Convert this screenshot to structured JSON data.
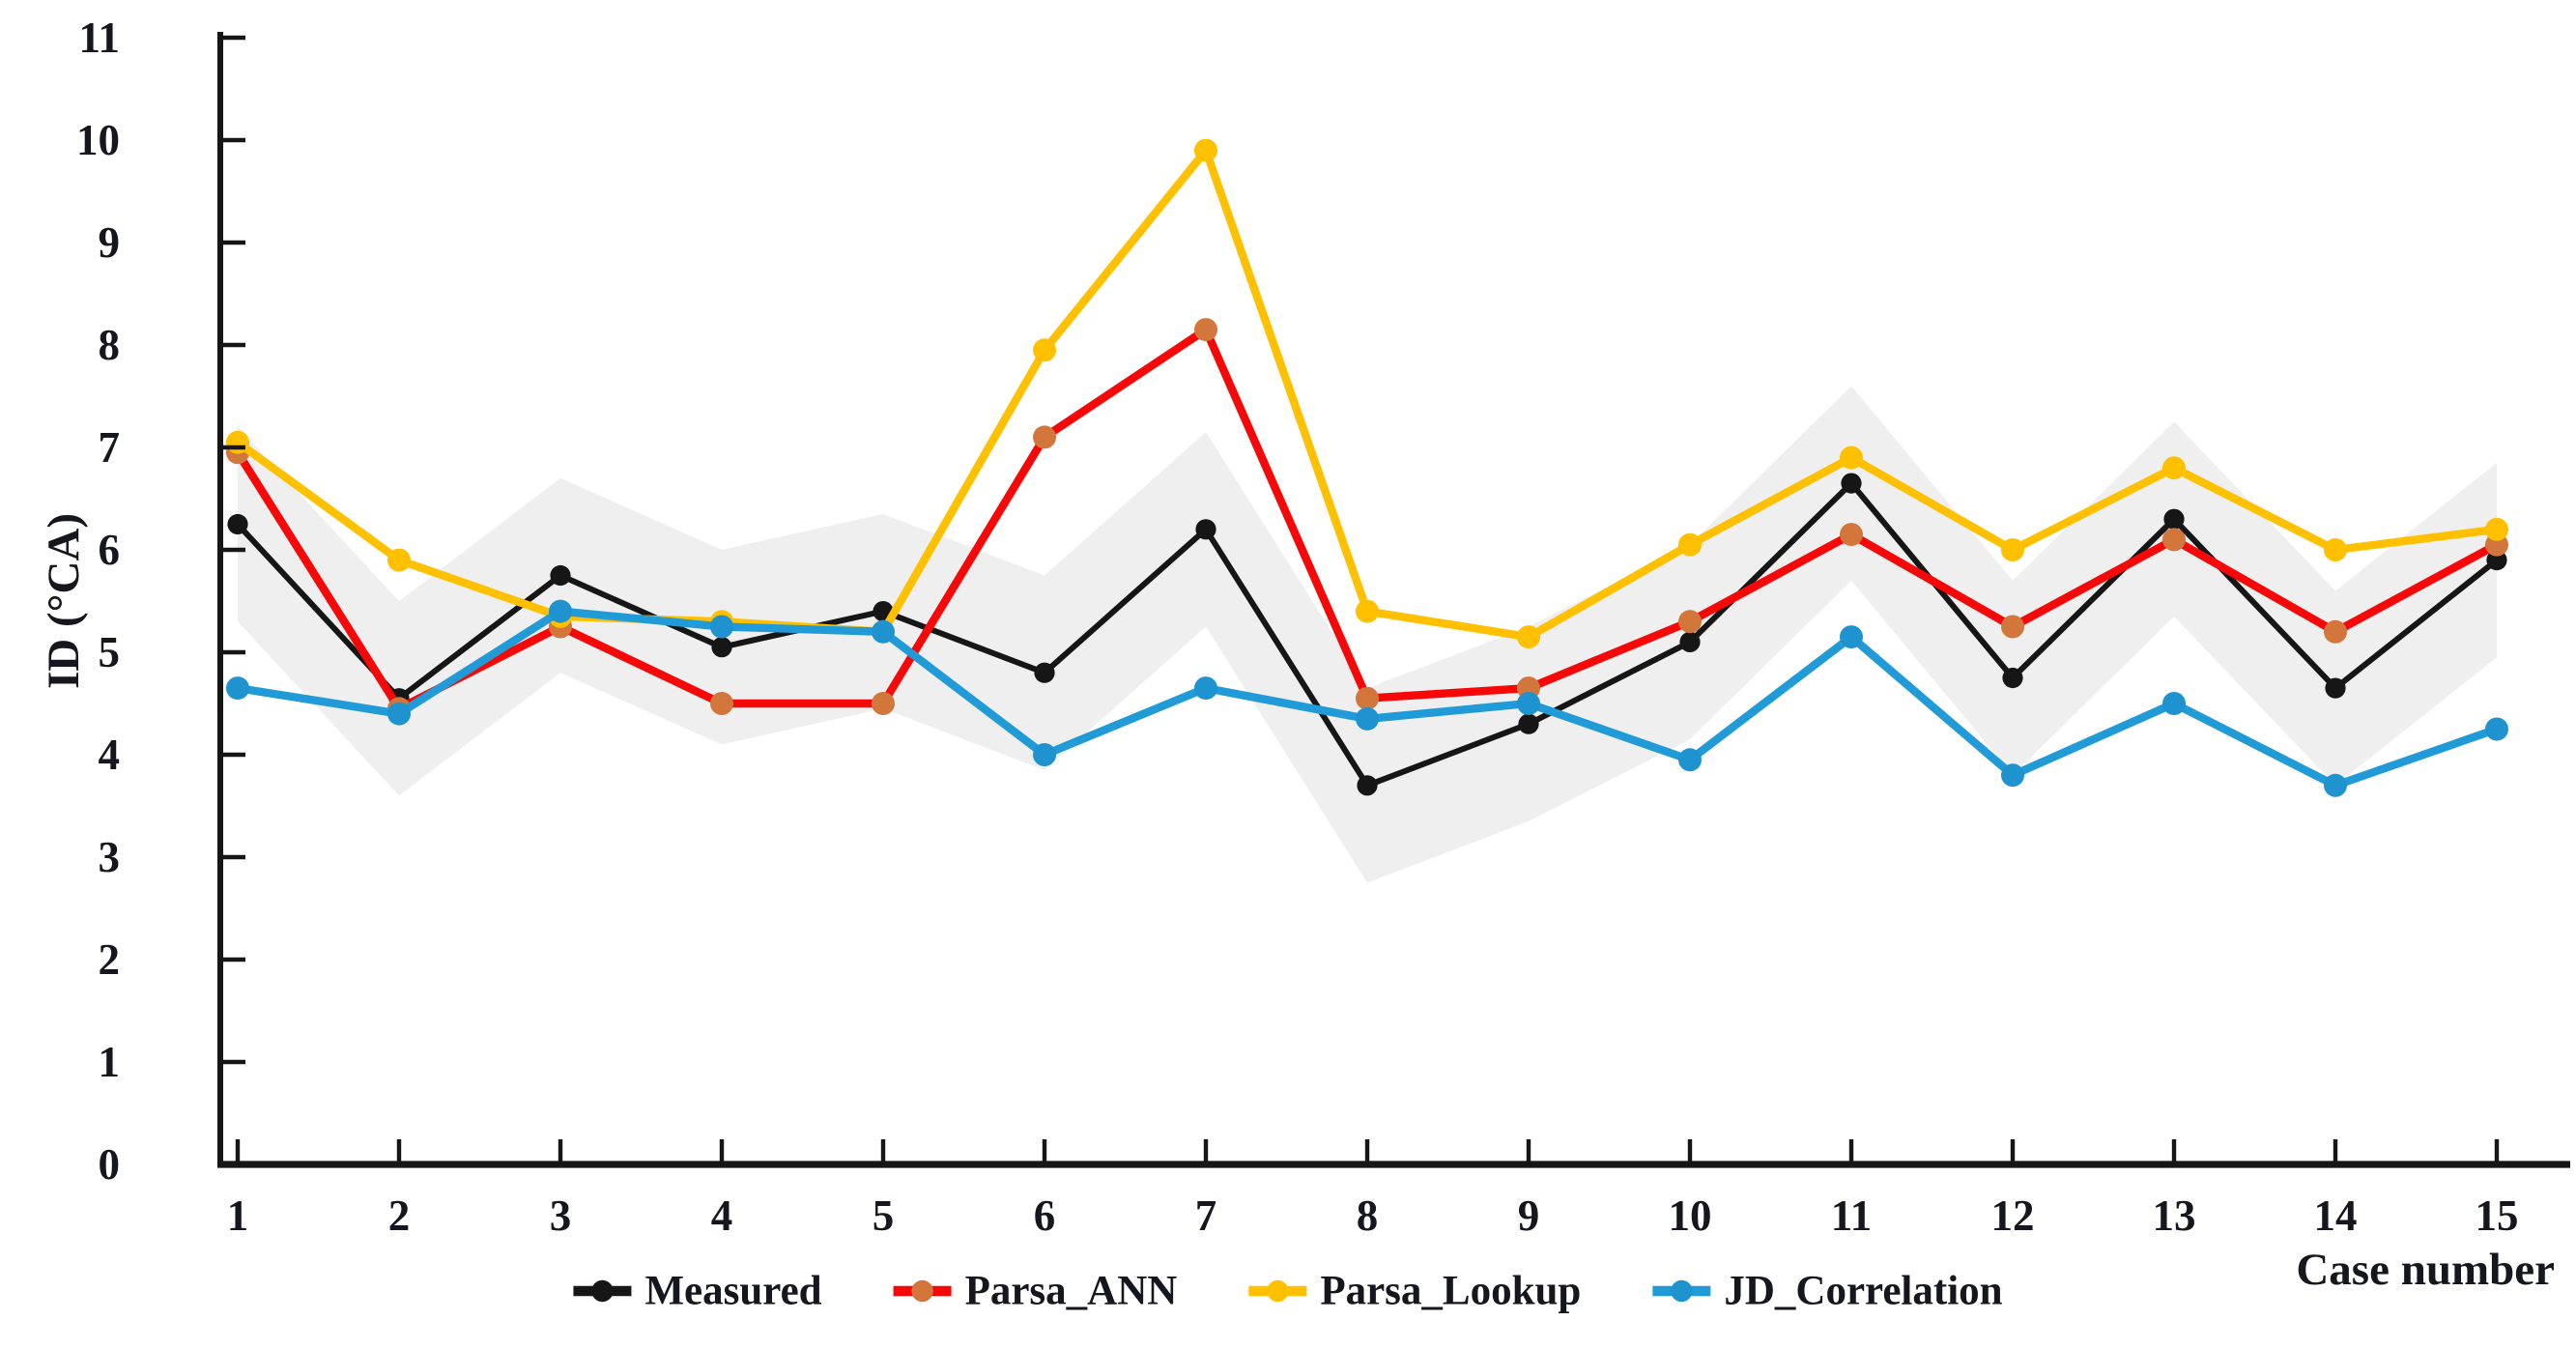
{
  "chart_data": {
    "type": "line",
    "title": "",
    "xlabel": "Case number",
    "ylabel": "ID (°CA)",
    "x": [
      1,
      2,
      3,
      4,
      5,
      6,
      7,
      8,
      9,
      10,
      11,
      12,
      13,
      14,
      15
    ],
    "ylim": [
      0,
      11
    ],
    "ytick_step": 1,
    "grid": false,
    "legend_position": "bottom",
    "colors": {
      "axis": "#161616",
      "text": "#16161e",
      "background": "#ffffff"
    },
    "uncertainty_band": {
      "name": "measured-uncertainty-band",
      "color": "#efefef",
      "upper": [
        7.2,
        5.5,
        6.7,
        6.0,
        6.35,
        5.75,
        7.15,
        4.65,
        5.25,
        6.05,
        7.6,
        5.7,
        7.25,
        5.6,
        6.85
      ],
      "lower": [
        5.3,
        3.6,
        4.8,
        4.1,
        4.45,
        3.85,
        5.25,
        2.75,
        3.35,
        4.15,
        5.7,
        3.8,
        5.35,
        3.7,
        4.95
      ]
    },
    "series": [
      {
        "name": "Measured",
        "color": "#161616",
        "marker_color": "#161616",
        "values": [
          6.25,
          4.55,
          5.75,
          5.05,
          5.4,
          4.8,
          6.2,
          3.7,
          4.3,
          5.1,
          6.65,
          4.75,
          6.3,
          4.65,
          5.9
        ]
      },
      {
        "name": "Parsa_ANN",
        "color": "#f70808",
        "marker_color": "#d2763b",
        "values": [
          6.95,
          4.45,
          5.25,
          4.5,
          4.5,
          7.1,
          8.15,
          4.55,
          4.65,
          5.3,
          6.15,
          5.25,
          6.1,
          5.2,
          6.05
        ]
      },
      {
        "name": "Parsa_Lookup",
        "color": "#ffc000",
        "marker_color": "#ffc000",
        "values": [
          7.05,
          5.9,
          5.35,
          5.3,
          5.2,
          7.95,
          9.9,
          5.4,
          5.15,
          6.05,
          6.9,
          6.0,
          6.8,
          6.0,
          6.2
        ]
      },
      {
        "name": "JD_Correlation",
        "color": "#219bd8",
        "marker_color": "#1e93cf",
        "values": [
          4.65,
          4.4,
          5.4,
          5.25,
          5.2,
          4.0,
          4.65,
          4.35,
          4.5,
          3.95,
          5.15,
          3.8,
          4.5,
          3.7,
          4.25
        ]
      }
    ]
  }
}
